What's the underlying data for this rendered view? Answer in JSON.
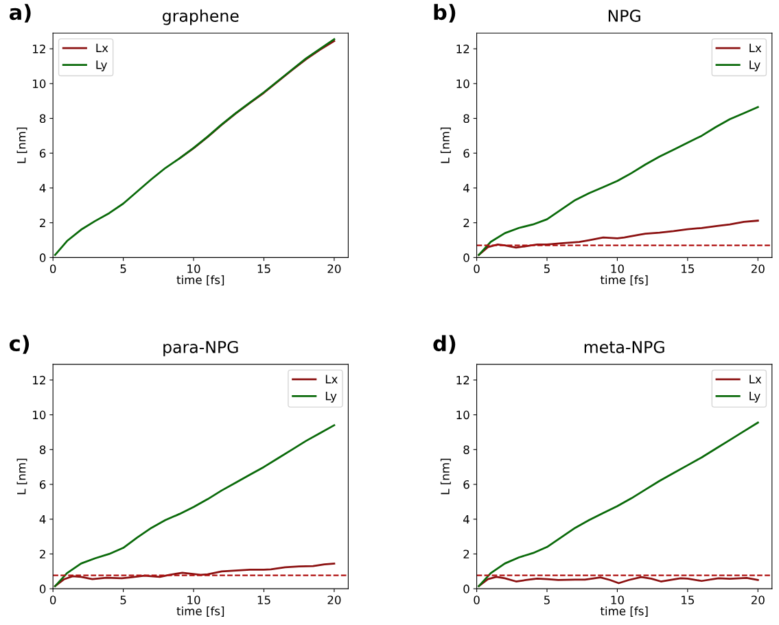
{
  "chart_data": [
    {
      "type": "line",
      "title": "graphene",
      "annotations": [
        "a)"
      ],
      "xlabel": "time [fs]",
      "ylabel": "L [nm]",
      "xlim": [
        0,
        21
      ],
      "ylim": [
        0,
        12.9
      ],
      "xticks": [
        0,
        5,
        10,
        15,
        20
      ],
      "yticks": [
        0,
        2,
        4,
        6,
        8,
        10,
        12
      ],
      "legend": "top left",
      "grid": false,
      "line_style": "solid",
      "marker": "none",
      "series": [
        {
          "name": "Lx",
          "color": "#8b1010",
          "x": [
            9,
            10,
            11,
            12,
            13,
            14,
            15,
            16,
            17,
            18,
            19,
            20
          ],
          "values": [
            5.7,
            6.28,
            6.93,
            7.63,
            8.28,
            8.88,
            9.47,
            10.12,
            10.77,
            11.4,
            11.95,
            12.45
          ]
        },
        {
          "name": "Ly",
          "color": "#0a6a0a",
          "x": [
            0.15,
            1,
            2,
            3,
            4,
            5,
            6,
            7,
            8,
            9,
            10,
            11,
            12,
            13,
            14,
            15,
            16,
            17,
            18,
            19,
            20
          ],
          "values": [
            0.15,
            0.95,
            1.6,
            2.1,
            2.55,
            3.1,
            3.8,
            4.5,
            5.15,
            5.7,
            6.3,
            6.95,
            7.65,
            8.3,
            8.9,
            9.5,
            10.15,
            10.8,
            11.45,
            12.0,
            12.55
          ]
        }
      ]
    },
    {
      "type": "line",
      "title": "NPG",
      "annotations": [
        "b)"
      ],
      "xlabel": "time [fs]",
      "ylabel": "L [nm]",
      "xlim": [
        0,
        21
      ],
      "ylim": [
        0,
        12.9
      ],
      "xticks": [
        0,
        5,
        10,
        15,
        20
      ],
      "yticks": [
        0,
        2,
        4,
        6,
        8,
        10,
        12
      ],
      "legend": "top right",
      "grid": false,
      "line_style": "solid",
      "marker": "none",
      "ref_lines": [
        {
          "axis": "y",
          "value": 0.7,
          "color": "#b01010",
          "line_style": "dashed"
        }
      ],
      "series": [
        {
          "name": "Lx",
          "color": "#8b1010",
          "x": [
            0.15,
            0.8,
            1.5,
            2,
            2.8,
            3.5,
            4.3,
            5,
            6,
            7.3,
            8,
            9,
            10,
            10.5,
            11.5,
            12,
            13,
            14,
            15,
            16,
            17,
            18,
            19,
            20
          ],
          "values": [
            0.15,
            0.6,
            0.75,
            0.7,
            0.57,
            0.65,
            0.75,
            0.75,
            0.82,
            0.9,
            1.0,
            1.15,
            1.1,
            1.15,
            1.3,
            1.37,
            1.43,
            1.52,
            1.63,
            1.7,
            1.8,
            1.9,
            2.05,
            2.12
          ]
        },
        {
          "name": "Ly",
          "color": "#0a6a0a",
          "x": [
            0.15,
            1,
            2,
            3,
            4,
            5,
            6,
            7,
            8,
            9,
            10,
            11,
            12,
            13,
            14,
            15,
            16,
            17,
            18,
            19,
            20
          ],
          "values": [
            0.15,
            0.9,
            1.4,
            1.7,
            1.9,
            2.2,
            2.75,
            3.3,
            3.7,
            4.05,
            4.4,
            4.85,
            5.35,
            5.8,
            6.2,
            6.6,
            7.0,
            7.5,
            7.95,
            8.3,
            8.65
          ]
        }
      ]
    },
    {
      "type": "line",
      "title": "para-NPG",
      "annotations": [
        "c)"
      ],
      "xlabel": "time [fs]",
      "ylabel": "L [nm]",
      "xlim": [
        0,
        21
      ],
      "ylim": [
        0,
        12.9
      ],
      "xticks": [
        0,
        5,
        10,
        15,
        20
      ],
      "yticks": [
        0,
        2,
        4,
        6,
        8,
        10,
        12
      ],
      "legend": "top right",
      "grid": false,
      "line_style": "solid",
      "marker": "none",
      "ref_lines": [
        {
          "axis": "y",
          "value": 0.77,
          "color": "#b01010",
          "line_style": "dashed"
        }
      ],
      "series": [
        {
          "name": "Lx",
          "color": "#8b1010",
          "x": [
            0.15,
            0.8,
            1.4,
            2,
            2.8,
            3.8,
            4.9,
            5.5,
            6.5,
            7.6,
            8.3,
            9.2,
            10.5,
            11,
            12,
            13,
            14,
            15,
            15.5,
            16.5,
            17.5,
            18.5,
            19.3,
            20
          ],
          "values": [
            0.15,
            0.55,
            0.72,
            0.68,
            0.55,
            0.63,
            0.6,
            0.65,
            0.75,
            0.68,
            0.8,
            0.92,
            0.8,
            0.83,
            1.0,
            1.05,
            1.1,
            1.1,
            1.12,
            1.23,
            1.28,
            1.3,
            1.4,
            1.45
          ]
        },
        {
          "name": "Ly",
          "color": "#0a6a0a",
          "x": [
            0.15,
            1,
            2,
            3,
            4,
            5,
            6,
            7,
            8,
            9,
            10,
            11,
            12,
            13,
            14,
            15,
            16,
            17,
            18,
            19,
            20
          ],
          "values": [
            0.15,
            0.9,
            1.45,
            1.75,
            2.0,
            2.35,
            2.95,
            3.5,
            3.95,
            4.3,
            4.7,
            5.15,
            5.65,
            6.1,
            6.55,
            7.0,
            7.5,
            8.0,
            8.5,
            8.95,
            9.4
          ]
        }
      ]
    },
    {
      "type": "line",
      "title": "meta-NPG",
      "annotations": [
        "d)"
      ],
      "xlabel": "time [fs]",
      "ylabel": "L [nm]",
      "xlim": [
        0,
        21
      ],
      "ylim": [
        0,
        12.9
      ],
      "xticks": [
        0,
        5,
        10,
        15,
        20
      ],
      "yticks": [
        0,
        2,
        4,
        6,
        8,
        10,
        12
      ],
      "legend": "top right",
      "grid": false,
      "line_style": "solid",
      "marker": "none",
      "ref_lines": [
        {
          "axis": "y",
          "value": 0.77,
          "color": "#b01010",
          "line_style": "dashed"
        }
      ],
      "series": [
        {
          "name": "Lx",
          "color": "#8b1010",
          "x": [
            0.15,
            0.8,
            1.4,
            2,
            2.8,
            3.5,
            4.3,
            5,
            5.8,
            7,
            7.7,
            8.8,
            9.5,
            10.1,
            10.8,
            11.7,
            12.4,
            13.1,
            14.5,
            15,
            16,
            17.2,
            18,
            19.2,
            20
          ],
          "values": [
            0.15,
            0.55,
            0.68,
            0.6,
            0.42,
            0.5,
            0.58,
            0.55,
            0.5,
            0.52,
            0.52,
            0.65,
            0.5,
            0.32,
            0.5,
            0.67,
            0.58,
            0.42,
            0.6,
            0.58,
            0.45,
            0.6,
            0.57,
            0.62,
            0.5
          ]
        },
        {
          "name": "Ly",
          "color": "#0a6a0a",
          "x": [
            0.15,
            1,
            2,
            3,
            4,
            5,
            6,
            7,
            8,
            9,
            10,
            11,
            12,
            13,
            14,
            15,
            16,
            17,
            18,
            19,
            20
          ],
          "values": [
            0.15,
            0.9,
            1.45,
            1.8,
            2.05,
            2.4,
            2.95,
            3.5,
            3.95,
            4.35,
            4.75,
            5.2,
            5.7,
            6.2,
            6.65,
            7.1,
            7.55,
            8.05,
            8.55,
            9.05,
            9.55
          ]
        }
      ]
    }
  ]
}
